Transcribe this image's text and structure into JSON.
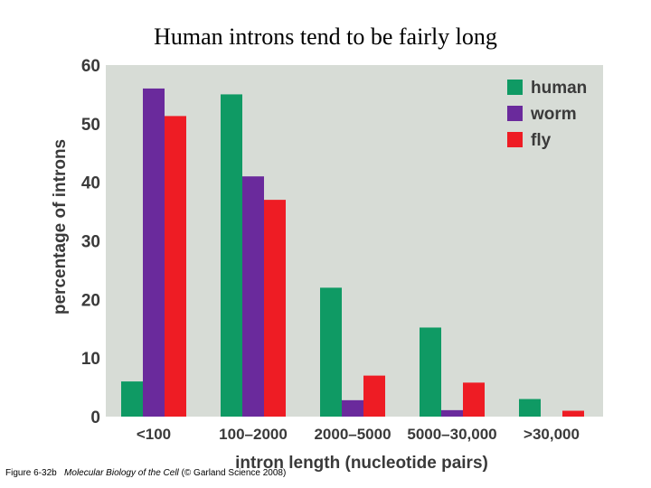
{
  "slide": {
    "title": "Human introns tend to be fairly long"
  },
  "caption": {
    "figure": "Figure 6-32b",
    "book": "Molecular Biology of the Cell",
    "credit": "(© Garland Science 2008)"
  },
  "chart_data": {
    "type": "bar",
    "categories": [
      "<100",
      "100–2000",
      "2000–5000",
      "5000–30,000",
      ">30,000"
    ],
    "series": [
      {
        "name": "human",
        "color": "#0f9a64",
        "values": [
          6,
          55,
          22,
          15.2,
          3
        ]
      },
      {
        "name": "worm",
        "color": "#6a2a9c",
        "values": [
          56,
          41,
          2.8,
          1.1,
          0
        ]
      },
      {
        "name": "fly",
        "color": "#ee1c24",
        "values": [
          51.3,
          37,
          7,
          5.8,
          1
        ]
      }
    ],
    "xlabel": "intron length (nucleotide pairs)",
    "ylabel": "percentage of introns",
    "ylim": [
      0,
      60
    ],
    "yticks": [
      0,
      10,
      20,
      30,
      40,
      50,
      60
    ],
    "plot_background": "#d7dcd6",
    "grid": false,
    "legend_position": "top-right"
  }
}
